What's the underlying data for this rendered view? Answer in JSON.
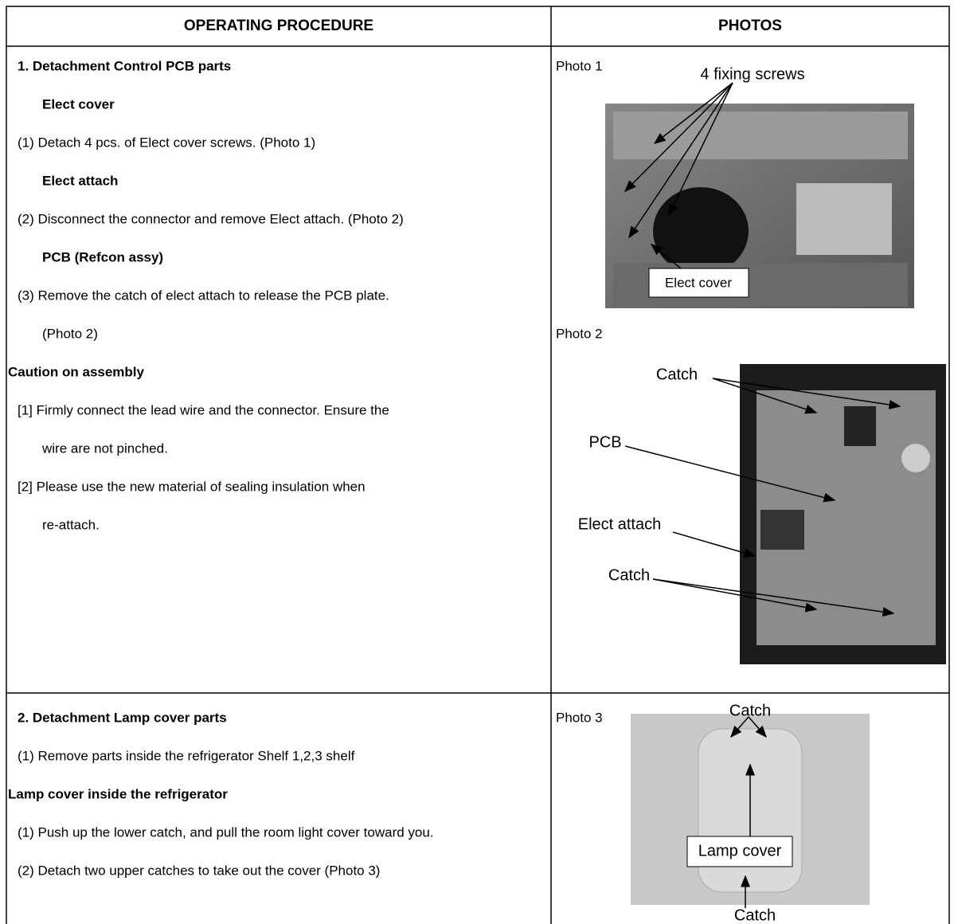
{
  "header": {
    "procedure": "OPERATING PROCEDURE",
    "photos": "PHOTOS"
  },
  "sections": [
    {
      "lines": [
        "1.  Detachment Control PCB parts",
        "Elect cover",
        "(1) Detach 4 pcs. of Elect cover screws. (Photo 1)",
        "Elect attach",
        "(2) Disconnect the connector and remove Elect attach. (Photo 2)",
        "PCB (Refcon assy)",
        "(3) Remove the catch of elect attach to release the PCB plate.",
        "(Photo 2)",
        "Caution on assembly",
        "[1] Firmly connect the lead wire and the connector. Ensure the",
        "wire are not pinched.",
        "[2] Please use the new material of sealing insulation when",
        "re-attach."
      ]
    },
    {
      "lines": [
        "2.  Detachment Lamp cover parts",
        "(1) Remove parts inside the refrigerator Shelf 1,2,3 shelf",
        "Lamp cover inside the refrigerator",
        "(1) Push up the lower catch, and pull the room light cover toward you.",
        "(2) Detach two upper catches to take out the cover (Photo 3)"
      ]
    }
  ],
  "photos": [
    {
      "label": "Photo 1",
      "callouts": [
        "4 fixing screws",
        "Elect cover"
      ]
    },
    {
      "label": "Photo 2",
      "callouts": [
        "Catch",
        "PCB",
        "Elect attach",
        "Catch"
      ]
    },
    {
      "label": "Photo 3",
      "callouts": [
        "Catch",
        "Lamp cover",
        "Catch"
      ]
    }
  ]
}
